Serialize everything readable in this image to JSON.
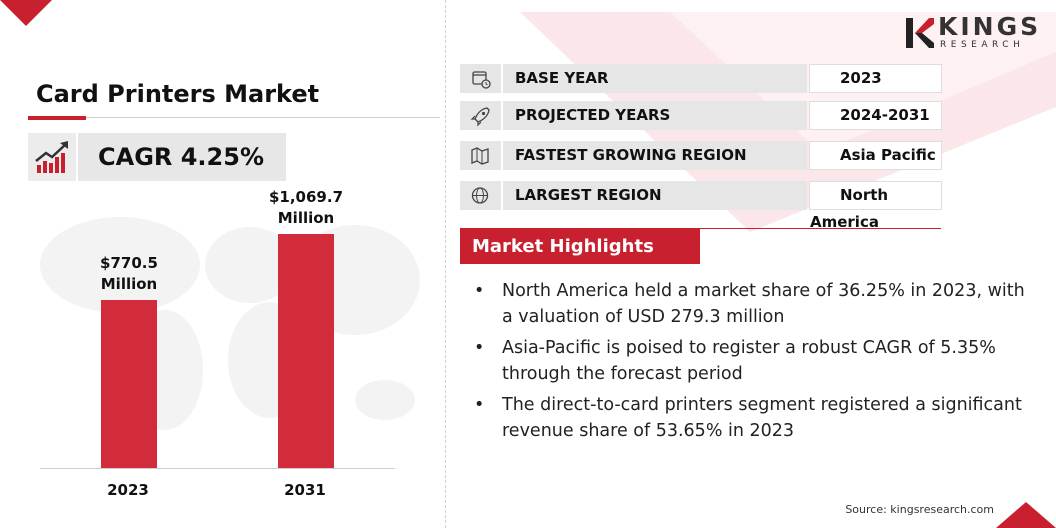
{
  "title": "Card Printers Market",
  "cagr_label": "CAGR 4.25%",
  "brand": {
    "name": "KINGS",
    "subtitle": "RESEARCH",
    "accent": "#c8202f"
  },
  "icons": {
    "cagr": "growth-chart-icon",
    "base_year": "calendar-clock-icon",
    "projected_years": "rocket-icon",
    "fastest_growing_region": "map-region-icon",
    "largest_region": "globe-icon"
  },
  "chart_data": {
    "type": "bar",
    "categories": [
      "2023",
      "2031"
    ],
    "values": [
      770.5,
      1069.7
    ],
    "data_labels": [
      {
        "value": "$770.5",
        "unit": "Million"
      },
      {
        "value": "$1,069.7",
        "unit": "Million"
      }
    ],
    "color": "#d22b3c",
    "ylim": [
      0,
      1300
    ],
    "grid": false
  },
  "info_rows": [
    {
      "key": "BASE YEAR",
      "value": "2023"
    },
    {
      "key": "PROJECTED YEARS",
      "value": "2024-2031"
    },
    {
      "key": "FASTEST GROWING REGION",
      "value": "Asia Pacific"
    },
    {
      "key": "LARGEST REGION",
      "value": "North America"
    }
  ],
  "highlights": {
    "heading": "Market Highlights",
    "items": [
      "North America held a market share of 36.25% in 2023, with a valuation of USD 279.3 million",
      "Asia-Pacific is poised to register a robust CAGR of 5.35% through the forecast period",
      "The direct-to-card printers segment registered a significant revenue share of 53.65% in 2023"
    ]
  },
  "source": "Source: kingsresearch.com"
}
